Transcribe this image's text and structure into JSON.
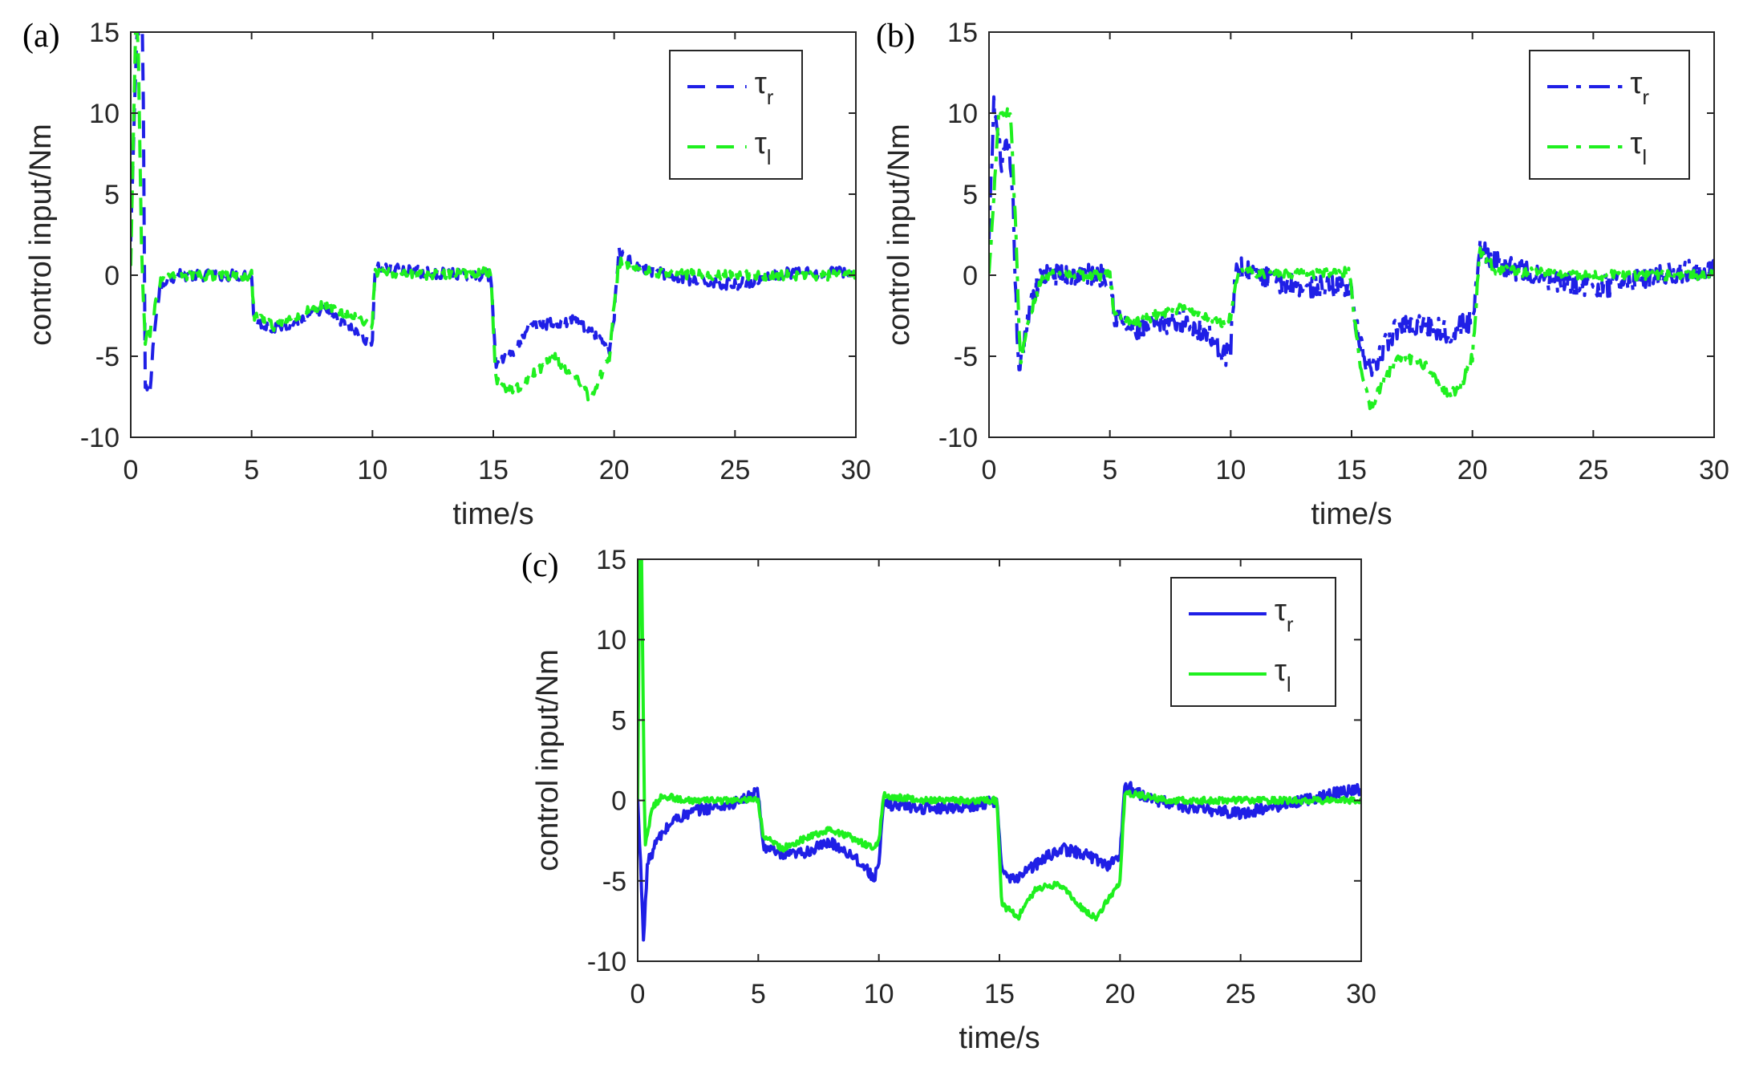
{
  "chart_data": [
    {
      "id": "a",
      "type": "line",
      "panel_label": "(a)",
      "xlabel": "time/s",
      "ylabel": "control input/Nm",
      "xlim": [
        0,
        30
      ],
      "ylim": [
        -10,
        15
      ],
      "xticks": [
        0,
        5,
        10,
        15,
        20,
        25,
        30
      ],
      "yticks": [
        -10,
        -5,
        0,
        5,
        10,
        15
      ],
      "grid": false,
      "legend_position": "top-right",
      "line_style": "dashed",
      "series": [
        {
          "name": "τ",
          "sub": "r",
          "color": "#1f1fe6",
          "noise": 0.35,
          "points": [
            [
              0,
              2
            ],
            [
              0.25,
              15
            ],
            [
              0.5,
              15
            ],
            [
              0.6,
              -7
            ],
            [
              0.8,
              -7.2
            ],
            [
              1.0,
              -3
            ],
            [
              1.2,
              -1
            ],
            [
              1.5,
              -0.2
            ],
            [
              2,
              0
            ],
            [
              5,
              0
            ],
            [
              5.1,
              -2.8
            ],
            [
              6,
              -3.3
            ],
            [
              7,
              -2.7
            ],
            [
              8,
              -2.2
            ],
            [
              9,
              -3.2
            ],
            [
              9.8,
              -4
            ],
            [
              10,
              -4
            ],
            [
              10.1,
              0.5
            ],
            [
              12,
              0.2
            ],
            [
              14,
              0
            ],
            [
              14.9,
              0
            ],
            [
              15.1,
              -5.5
            ],
            [
              16,
              -4.5
            ],
            [
              16.6,
              -3
            ],
            [
              17.5,
              -3
            ],
            [
              18.5,
              -2.8
            ],
            [
              19,
              -3.5
            ],
            [
              19.8,
              -4.6
            ],
            [
              20,
              -2.5
            ],
            [
              20.2,
              1.5
            ],
            [
              21,
              0.5
            ],
            [
              23,
              -0.3
            ],
            [
              25,
              -0.6
            ],
            [
              27,
              0.1
            ],
            [
              30,
              0.2
            ]
          ]
        },
        {
          "name": "τ",
          "sub": "l",
          "color": "#1ff01f",
          "noise": 0.3,
          "points": [
            [
              0,
              0.5
            ],
            [
              0.2,
              15
            ],
            [
              0.3,
              15
            ],
            [
              0.45,
              1
            ],
            [
              0.6,
              -4
            ],
            [
              0.8,
              -3.5
            ],
            [
              1.0,
              -2
            ],
            [
              1.2,
              -0.5
            ],
            [
              1.5,
              0
            ],
            [
              5,
              0
            ],
            [
              5.1,
              -2.5
            ],
            [
              6,
              -3.2
            ],
            [
              7,
              -2.4
            ],
            [
              8,
              -1.8
            ],
            [
              9,
              -2.4
            ],
            [
              9.8,
              -3
            ],
            [
              10,
              -3
            ],
            [
              10.1,
              0.2
            ],
            [
              12,
              0
            ],
            [
              14.9,
              0.2
            ],
            [
              15.1,
              -6.5
            ],
            [
              15.8,
              -7.2
            ],
            [
              16.5,
              -6.3
            ],
            [
              17.5,
              -5
            ],
            [
              18.5,
              -6.5
            ],
            [
              19,
              -7.6
            ],
            [
              19.8,
              -5
            ],
            [
              20,
              -1.8
            ],
            [
              20.2,
              0.8
            ],
            [
              22,
              0.1
            ],
            [
              25,
              0
            ],
            [
              30,
              0
            ]
          ]
        }
      ]
    },
    {
      "id": "b",
      "type": "line",
      "panel_label": "(b)",
      "xlabel": "time/s",
      "ylabel": "control input/Nm",
      "xlim": [
        0,
        30
      ],
      "ylim": [
        -10,
        15
      ],
      "xticks": [
        0,
        5,
        10,
        15,
        20,
        25,
        30
      ],
      "yticks": [
        -10,
        -5,
        0,
        5,
        10,
        15
      ],
      "grid": false,
      "legend_position": "top-right",
      "line_style": "dashdot",
      "series": [
        {
          "name": "τ",
          "sub": "r",
          "color": "#1f1fe6",
          "noise": 0.7,
          "points": [
            [
              0,
              2
            ],
            [
              0.2,
              10.5
            ],
            [
              0.5,
              7
            ],
            [
              0.8,
              8
            ],
            [
              1.0,
              4
            ],
            [
              1.2,
              -5.5
            ],
            [
              1.4,
              -5
            ],
            [
              1.7,
              -1.5
            ],
            [
              2.2,
              0
            ],
            [
              5,
              0
            ],
            [
              5.2,
              -2.5
            ],
            [
              6,
              -3.5
            ],
            [
              7,
              -3
            ],
            [
              8,
              -2.8
            ],
            [
              9,
              -3.5
            ],
            [
              9.8,
              -5
            ],
            [
              10,
              -4.5
            ],
            [
              10.2,
              0.5
            ],
            [
              12,
              -0.5
            ],
            [
              14,
              -0.8
            ],
            [
              14.9,
              -0.5
            ],
            [
              15.3,
              -4
            ],
            [
              15.8,
              -6.2
            ],
            [
              16.3,
              -4.5
            ],
            [
              17,
              -3
            ],
            [
              18,
              -3
            ],
            [
              19,
              -3.5
            ],
            [
              20,
              -2.8
            ],
            [
              20.3,
              1.8
            ],
            [
              21,
              0.8
            ],
            [
              23,
              -0.3
            ],
            [
              25,
              -0.8
            ],
            [
              27,
              -0.2
            ],
            [
              29,
              0.3
            ],
            [
              30,
              0.5
            ]
          ]
        },
        {
          "name": "τ",
          "sub": "l",
          "color": "#1ff01f",
          "noise": 0.3,
          "points": [
            [
              0,
              0
            ],
            [
              0.2,
              5
            ],
            [
              0.4,
              10
            ],
            [
              0.9,
              10
            ],
            [
              1.1,
              3
            ],
            [
              1.3,
              -5.5
            ],
            [
              1.6,
              -3
            ],
            [
              2.2,
              0
            ],
            [
              5,
              0
            ],
            [
              5.2,
              -2.5
            ],
            [
              6,
              -3
            ],
            [
              7,
              -2.4
            ],
            [
              8,
              -2
            ],
            [
              9,
              -2.5
            ],
            [
              9.8,
              -3
            ],
            [
              10,
              -2.5
            ],
            [
              10.3,
              0.3
            ],
            [
              12,
              0
            ],
            [
              14.9,
              0.2
            ],
            [
              15.3,
              -5
            ],
            [
              15.8,
              -8.3
            ],
            [
              16.3,
              -6.5
            ],
            [
              17,
              -5
            ],
            [
              18,
              -5.5
            ],
            [
              19,
              -7.3
            ],
            [
              19.5,
              -7
            ],
            [
              20,
              -5
            ],
            [
              20.3,
              1.5
            ],
            [
              21,
              0.3
            ],
            [
              25,
              0
            ],
            [
              30,
              0
            ]
          ]
        }
      ]
    },
    {
      "id": "c",
      "type": "line",
      "panel_label": "(c)",
      "xlabel": "time/s",
      "ylabel": "control input/Nm",
      "xlim": [
        0,
        30
      ],
      "ylim": [
        -10,
        15
      ],
      "xticks": [
        0,
        5,
        10,
        15,
        20,
        25,
        30
      ],
      "yticks": [
        -10,
        -5,
        0,
        5,
        10,
        15
      ],
      "grid": false,
      "legend_position": "top-right",
      "line_style": "solid",
      "series": [
        {
          "name": "τ",
          "sub": "r",
          "color": "#1f1fe6",
          "noise": 0.35,
          "points": [
            [
              0,
              0
            ],
            [
              0.15,
              -5
            ],
            [
              0.25,
              -8.7
            ],
            [
              0.4,
              -4
            ],
            [
              0.8,
              -2.5
            ],
            [
              1.5,
              -1.2
            ],
            [
              2.5,
              -0.6
            ],
            [
              4,
              -0.2
            ],
            [
              5,
              0.5
            ],
            [
              5.2,
              -2.8
            ],
            [
              6,
              -3.5
            ],
            [
              7,
              -3.2
            ],
            [
              8,
              -2.6
            ],
            [
              9,
              -3.5
            ],
            [
              9.8,
              -4.8
            ],
            [
              10,
              -4
            ],
            [
              10.2,
              -0.2
            ],
            [
              12,
              -0.5
            ],
            [
              14,
              -0.3
            ],
            [
              14.9,
              0
            ],
            [
              15.1,
              -4.5
            ],
            [
              15.5,
              -5
            ],
            [
              16.5,
              -4
            ],
            [
              17.5,
              -3
            ],
            [
              18.5,
              -3.3
            ],
            [
              19.5,
              -4
            ],
            [
              20,
              -3.5
            ],
            [
              20.2,
              1
            ],
            [
              21,
              0.2
            ],
            [
              23,
              -0.5
            ],
            [
              25,
              -0.8
            ],
            [
              27,
              -0.2
            ],
            [
              29,
              0.5
            ],
            [
              30,
              0.7
            ]
          ]
        },
        {
          "name": "τ",
          "sub": "l",
          "color": "#1ff01f",
          "noise": 0.2,
          "points": [
            [
              0,
              0
            ],
            [
              0.08,
              15
            ],
            [
              0.16,
              15
            ],
            [
              0.3,
              -3
            ],
            [
              0.6,
              -0.5
            ],
            [
              1,
              0.3
            ],
            [
              2,
              0
            ],
            [
              5,
              0
            ],
            [
              5.2,
              -2.2
            ],
            [
              6,
              -3
            ],
            [
              7,
              -2.3
            ],
            [
              8,
              -1.8
            ],
            [
              9,
              -2.4
            ],
            [
              9.8,
              -3
            ],
            [
              10,
              -2.5
            ],
            [
              10.2,
              0.3
            ],
            [
              12,
              0
            ],
            [
              14.9,
              0
            ],
            [
              15.1,
              -6.5
            ],
            [
              15.8,
              -7.2
            ],
            [
              16.5,
              -5.5
            ],
            [
              17.5,
              -5.2
            ],
            [
              18.5,
              -6.8
            ],
            [
              19,
              -7.3
            ],
            [
              19.8,
              -5.5
            ],
            [
              20,
              -5
            ],
            [
              20.2,
              0.5
            ],
            [
              22,
              0
            ],
            [
              25,
              0
            ],
            [
              30,
              0
            ]
          ]
        }
      ]
    }
  ]
}
